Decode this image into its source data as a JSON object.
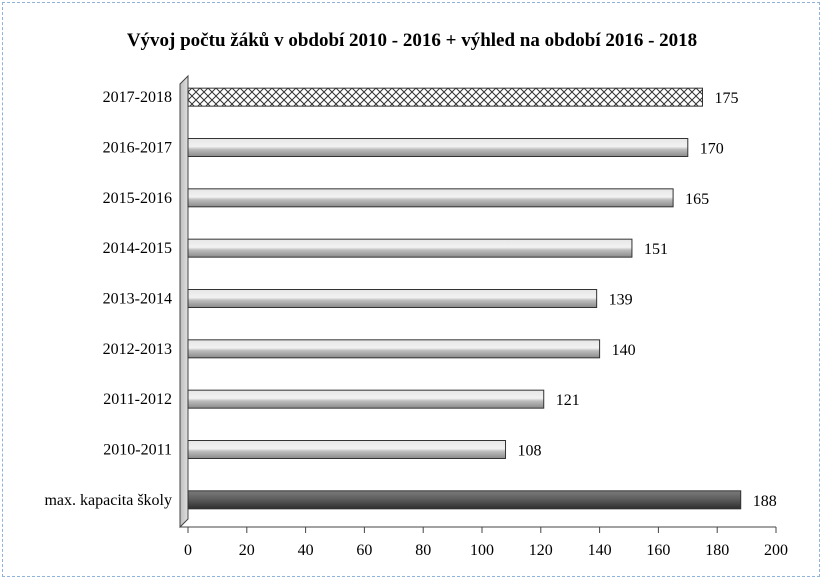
{
  "chart_data": {
    "type": "bar",
    "orientation": "horizontal",
    "title": "Vývoj počtu žáků v období 2010 - 2016 + výhled na období 2016 - 2018",
    "categories": [
      "2017-2018",
      "2016-2017",
      "2015-2016",
      "2014-2015",
      "2013-2014",
      "2012-2013",
      "2011-2012",
      "2010-2011",
      "max. kapacita školy"
    ],
    "values": [
      175,
      170,
      165,
      151,
      139,
      140,
      121,
      108,
      188
    ],
    "bar_styles": [
      "hatched",
      "gray",
      "gray",
      "gray",
      "gray",
      "gray",
      "gray",
      "gray",
      "dark"
    ],
    "xlim": [
      0,
      200
    ],
    "xticks": [
      0,
      20,
      40,
      60,
      80,
      100,
      120,
      140,
      160,
      180,
      200
    ],
    "grid": false,
    "legend": "none",
    "colors": {
      "bar": "#a6a6a6",
      "bar_dark": "#4d4d4d",
      "hatch": "#ffffff",
      "wall": "#c8c8c8"
    }
  }
}
